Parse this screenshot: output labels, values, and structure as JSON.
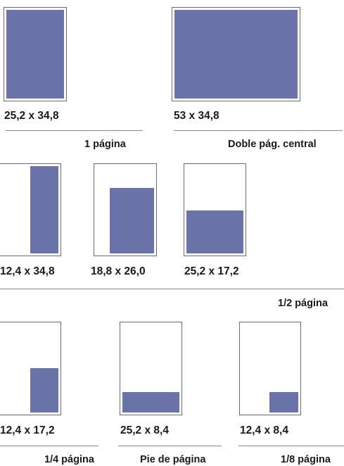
{
  "accent_color": "#6c73a8",
  "sections": {
    "full_page": {
      "category_label": "1 página",
      "items": [
        {
          "size_label": "25,2 x 34,8"
        }
      ]
    },
    "double_spread": {
      "category_label": "Doble pág. central",
      "items": [
        {
          "size_label": "53 x 34,8"
        }
      ]
    },
    "half_page": {
      "category_label": "1/2 página",
      "items": [
        {
          "size_label": "12,4 x 34,8"
        },
        {
          "size_label": "18,8 x 26,0"
        },
        {
          "size_label": "25,2 x 17,2"
        }
      ]
    },
    "quarter_page": {
      "category_label": "1/4 página",
      "items": [
        {
          "size_label": "12,4 x 17,2"
        }
      ]
    },
    "footer_page": {
      "category_label": "Pie de página",
      "items": [
        {
          "size_label": "25,2 x 8,4"
        }
      ]
    },
    "eighth_page": {
      "category_label": "1/8 página",
      "items": [
        {
          "size_label": "12,4 x 8,4"
        }
      ]
    }
  }
}
